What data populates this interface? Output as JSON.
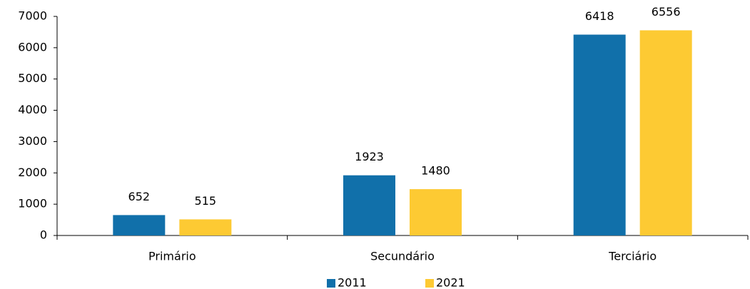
{
  "chart_data": {
    "type": "bar",
    "categories": [
      "Primário",
      "Secundário",
      "Terciário"
    ],
    "series": [
      {
        "name": "2011",
        "color": "#1170aa",
        "values": [
          652,
          1923,
          6418
        ]
      },
      {
        "name": "2021",
        "color": "#fdca33",
        "values": [
          515,
          1480,
          6556
        ]
      }
    ],
    "ylim": [
      0,
      7000
    ],
    "yticks": [
      0,
      1000,
      2000,
      3000,
      4000,
      5000,
      6000,
      7000
    ],
    "grid": false,
    "legend": "bottom"
  }
}
